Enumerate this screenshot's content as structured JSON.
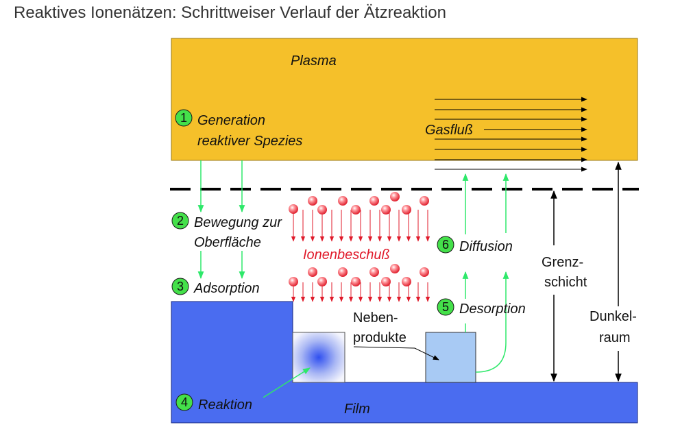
{
  "title": "Reaktives Ionenätzen: Schrittweiser Verlauf der Ätzreaktion",
  "labels": {
    "plasma": "Plasma",
    "film": "Film",
    "gasfluss": "Gasfluß",
    "ionenbeschuss": "Ionenbeschuß",
    "grenzschicht_1": "Grenz-",
    "grenzschicht_2": "schicht",
    "dunkelraum_1": "Dunkel-",
    "dunkelraum_2": "raum",
    "nebenprodukte_1": "Neben-",
    "nebenprodukte_2": "produkte"
  },
  "steps": [
    {
      "number": "1",
      "lines": [
        "Generation",
        "reaktiver Spezies"
      ]
    },
    {
      "number": "2",
      "lines": [
        "Bewegung zur",
        "Oberfläche"
      ]
    },
    {
      "number": "3",
      "lines": [
        "Adsorption"
      ]
    },
    {
      "number": "4",
      "lines": [
        "Reaktion"
      ]
    },
    {
      "number": "5",
      "lines": [
        "Desorption"
      ]
    },
    {
      "number": "6",
      "lines": [
        "Diffusion"
      ]
    }
  ],
  "colors": {
    "plasma": "#f5c02a",
    "film": "#4a6cf0",
    "step_badge": "#44e04a",
    "green_arrow": "#2ee86a",
    "ion": "#e01a2a",
    "byproduct": "#a8caf4"
  }
}
